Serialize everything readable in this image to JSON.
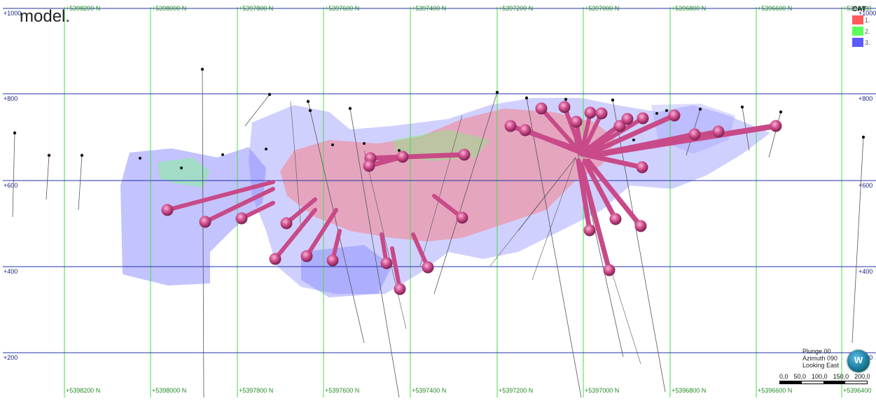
{
  "caption": "model.",
  "northing_labels": [
    "+5398200 N",
    "+5398000 N",
    "+5397800 N",
    "+5397600 N",
    "+5397400 N",
    "+5397200 N",
    "+5397000 N",
    "+5396800 N",
    "+5396600 N",
    "+5396400"
  ],
  "elevation_labels": [
    "+1000",
    "+800",
    "+600",
    "+400",
    "+200"
  ],
  "legend": {
    "title": "CAT",
    "items": [
      {
        "label": "1.",
        "color": "#ff5a5a"
      },
      {
        "label": "2.",
        "color": "#5aff5a"
      },
      {
        "label": "3.",
        "color": "#5a5aff"
      }
    ]
  },
  "view": {
    "plunge": "Plunge 00",
    "azimuth": "Azimuth 090",
    "looking": "Looking East",
    "compass_letter": "W"
  },
  "scale": {
    "ticks": [
      "0,0",
      "50,0",
      "100,0",
      "150,0",
      "200,0"
    ]
  },
  "colors": {
    "grid_northing": "#44dd44",
    "grid_elevation": "#2233aa",
    "drillhole_tube": "#d14f8f",
    "drillhole_trace": "#444444",
    "cat1": "#ff5a5a",
    "cat2": "#5aff5a",
    "cat3": "#5a5aff"
  }
}
